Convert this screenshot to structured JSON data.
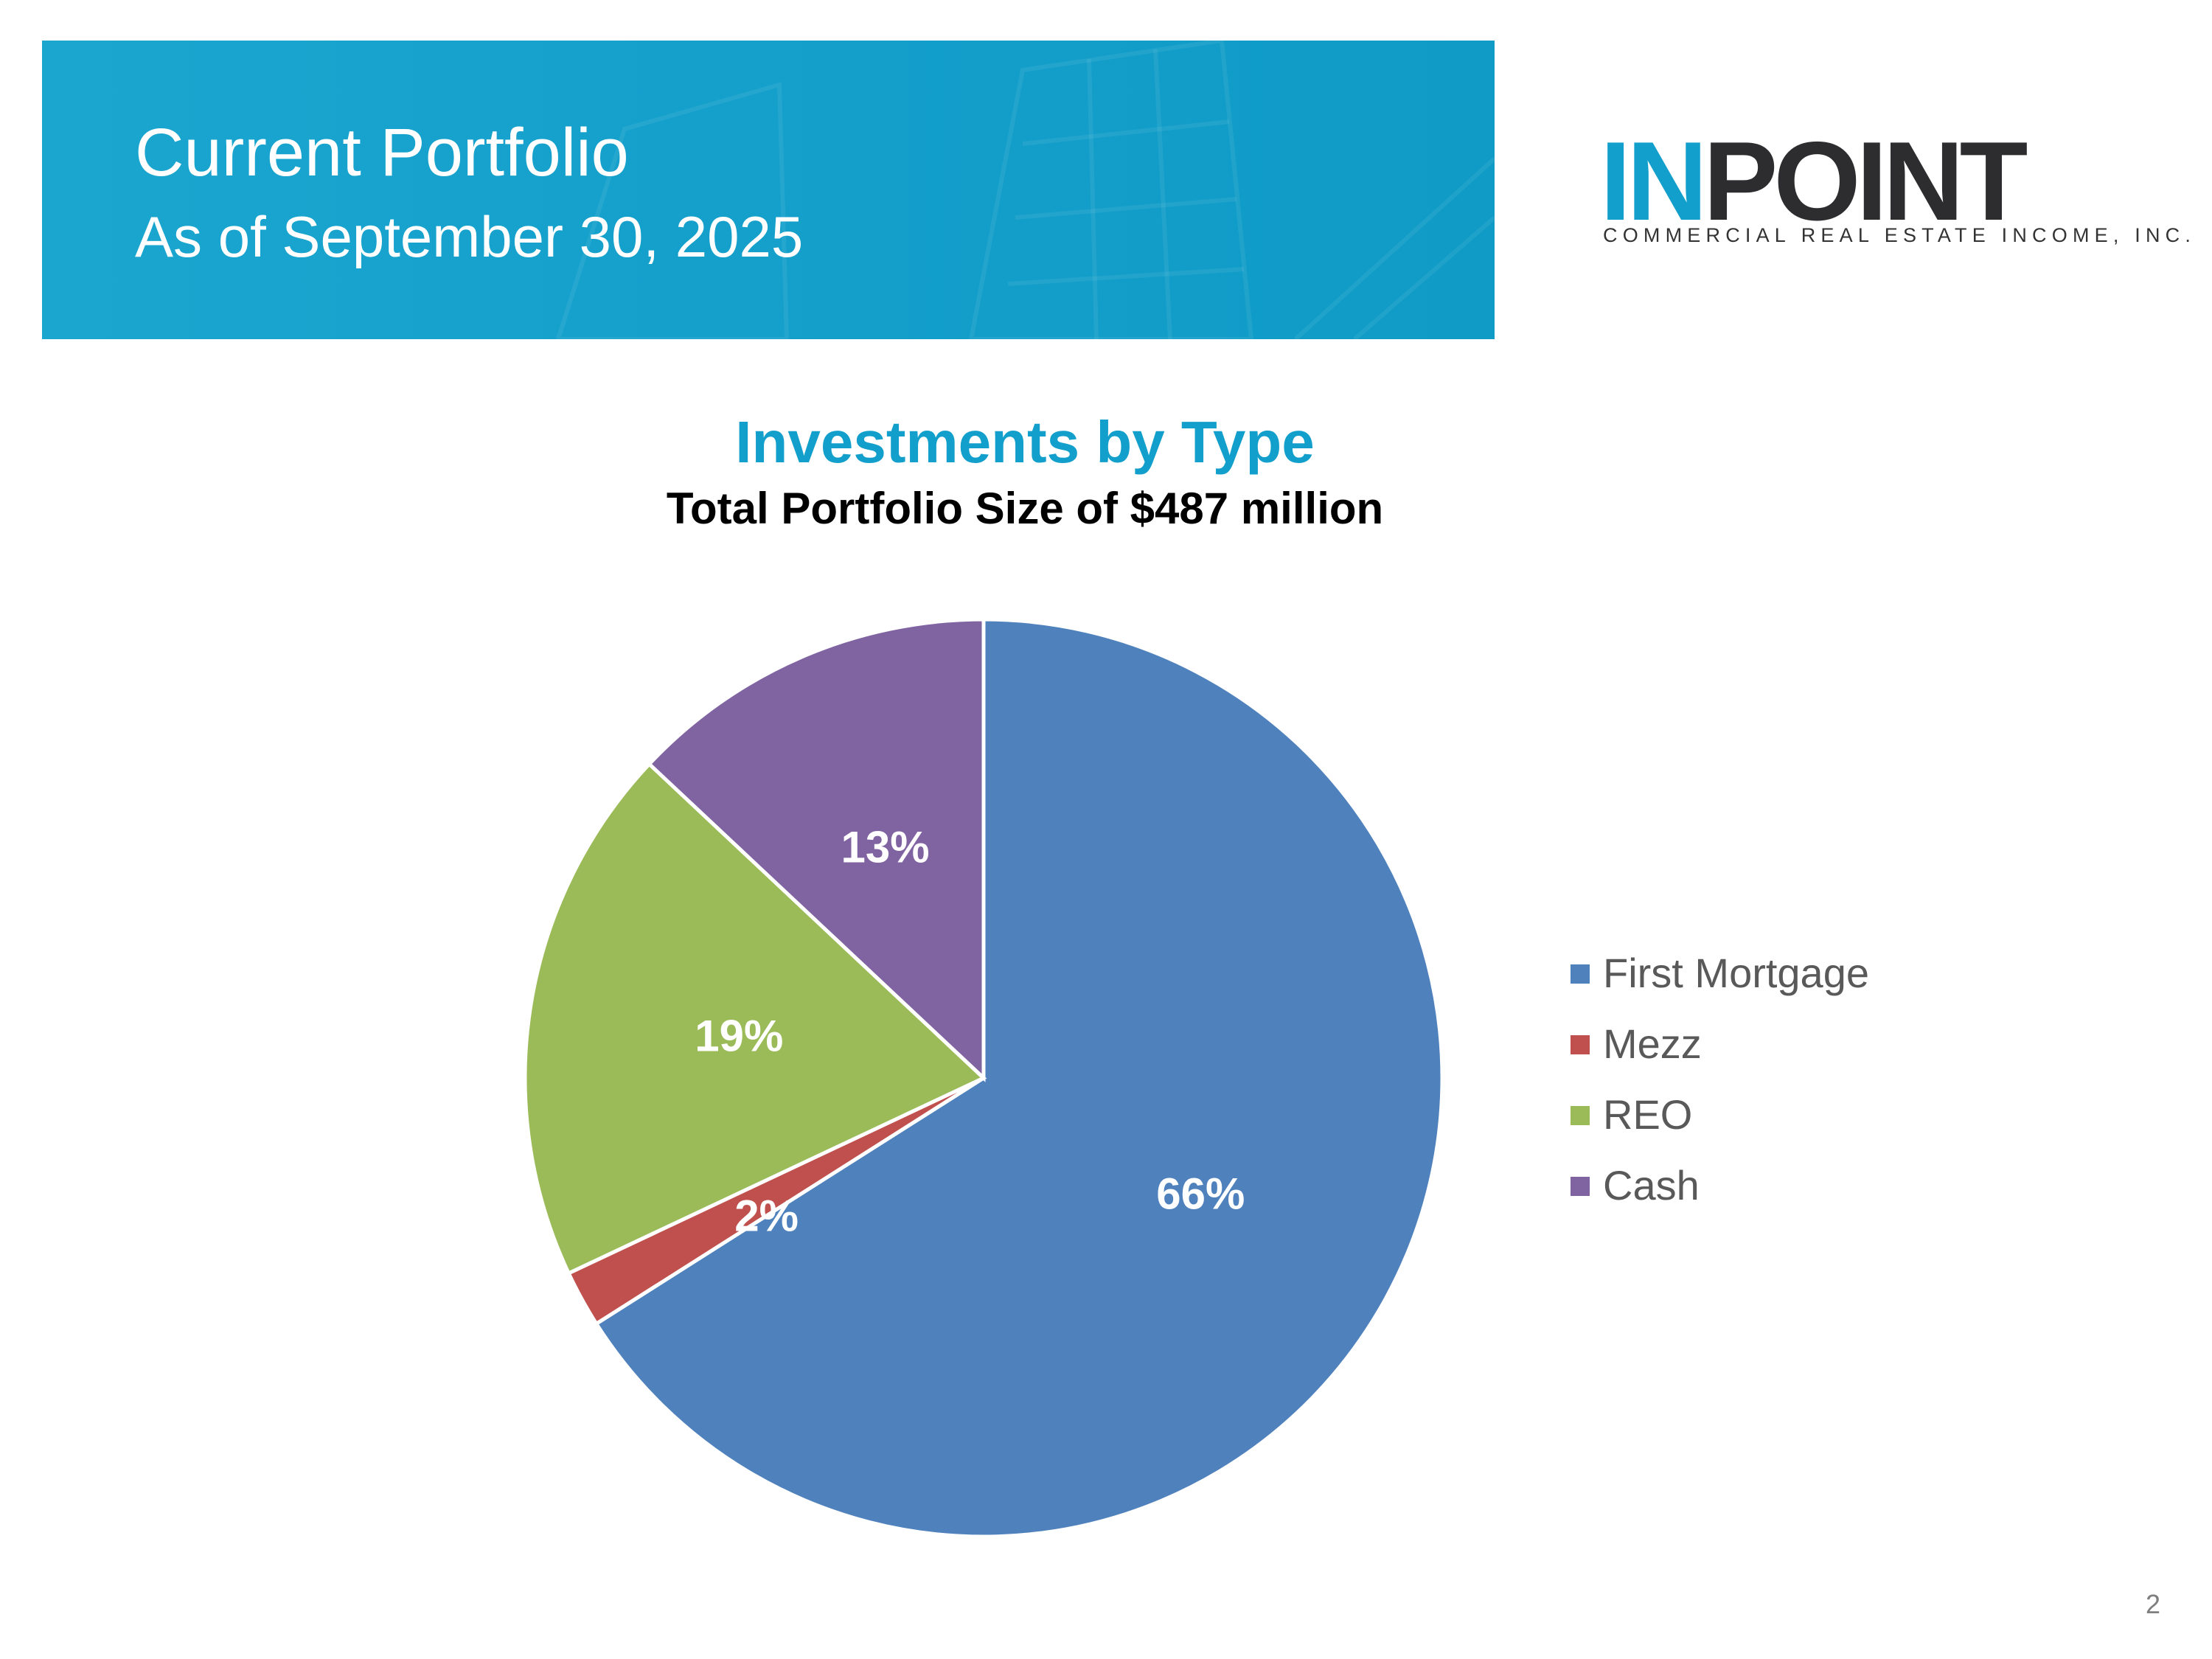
{
  "header": {
    "title": "Current Portfolio",
    "subtitle": "As of September 30, 2025"
  },
  "logo": {
    "word_part_1": "IN",
    "word_part_2": "POINT",
    "tagline": "COMMERCIAL REAL ESTATE INCOME, INC."
  },
  "colors": {
    "banner": "#14a0cb",
    "accent": "#139fcb"
  },
  "chart_data": {
    "type": "pie",
    "title": "Investments by Type",
    "subtitle": "Total Portfolio Size of $487 million",
    "categories": [
      "First Mortgage",
      "Mezz",
      "REO",
      "Cash"
    ],
    "values": [
      66,
      2,
      19,
      13
    ],
    "labels": [
      "66%",
      "2%",
      "19%",
      "13%"
    ],
    "colors": [
      "#4f81bd",
      "#c0504d",
      "#9bbb59",
      "#8064a2"
    ],
    "start_angle": "12 o'clock",
    "direction": "clockwise",
    "legend_position": "right"
  },
  "footer": {
    "page_number": "2"
  }
}
